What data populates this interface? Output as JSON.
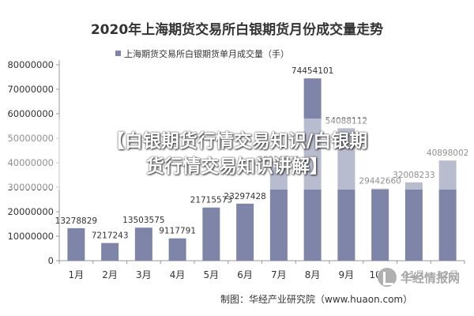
{
  "chart_data": {
    "type": "bar",
    "title": "2020年上海期货交易所白银期货月份成交量走势",
    "legend": {
      "label": "上海期货交易所白银期货单月成交量（手）",
      "placement": "top",
      "color": "#7f85a8"
    },
    "categories": [
      "1月",
      "2月",
      "3月",
      "4月",
      "5月",
      "6月",
      "7月",
      "8月",
      "9月",
      "10月",
      "11月",
      "12月"
    ],
    "values": [
      13278829,
      7217243,
      13503575,
      9117791,
      21715573,
      23297428,
      38210536,
      74454101,
      54088112,
      29442660,
      32008233,
      40898002
    ],
    "data_labels": [
      "13278829",
      "7217243",
      "13503575",
      "9117791",
      "21715573",
      "23297428",
      "38210536",
      "74454101",
      "54088112",
      "29442660",
      "32008233",
      "40898002"
    ],
    "yticks": [
      "0",
      "10000000",
      "20000000",
      "30000000",
      "40000000",
      "50000000",
      "60000000",
      "70000000",
      "80000000"
    ],
    "ylim": [
      0,
      80000000
    ],
    "grid": false,
    "source": "制图：华经产业研究院（www.huaon.com）"
  },
  "overlay": {
    "line1": "【白银期货行情交易知识/白银期",
    "line2": "货行情交易知识讲解】"
  },
  "watermark": {
    "text": "华经情报网"
  },
  "colors": {
    "bar": "#7f85a8",
    "axis": "#999999",
    "text": "#333333"
  }
}
